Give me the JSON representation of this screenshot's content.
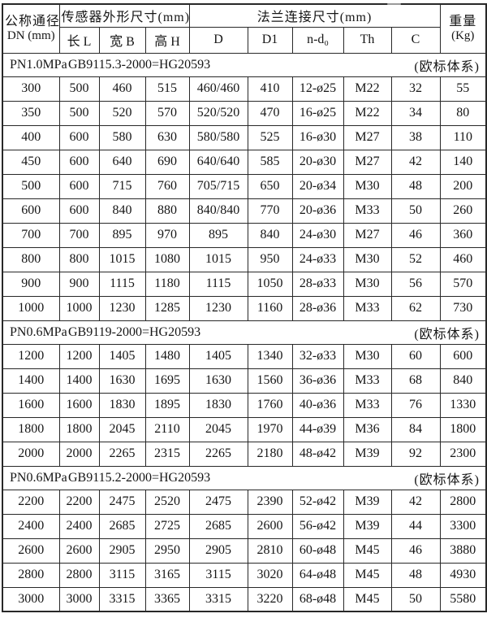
{
  "colors": {
    "ink": "#161616",
    "border": "#282828",
    "paper": "#ffffff"
  },
  "table": {
    "header": {
      "dn_title": "公称通径",
      "dn_unit": "DN (mm)",
      "sensor_group": "传感器外形尺寸(mm)",
      "flange_group": "法兰连接尺寸(mm)",
      "weight_title": "重量",
      "weight_unit": "(Kg)",
      "sub_headers": [
        "长 L",
        "宽 B",
        "高 H",
        "D",
        "D1",
        "n-d₀",
        "Th",
        "C"
      ]
    },
    "sections": [
      {
        "pressure": "PN1.0MPa",
        "standard": "GB9115.3-2000=HG20593",
        "system": "(欧标体系)",
        "rows": [
          [
            "300",
            "500",
            "460",
            "515",
            "460/460",
            "410",
            "12-ø25",
            "M22",
            "32",
            "55"
          ],
          [
            "350",
            "500",
            "520",
            "570",
            "520/520",
            "470",
            "16-ø25",
            "M22",
            "34",
            "80"
          ],
          [
            "400",
            "600",
            "580",
            "630",
            "580/580",
            "525",
            "16-ø30",
            "M27",
            "38",
            "110"
          ],
          [
            "450",
            "600",
            "640",
            "690",
            "640/640",
            "585",
            "20-ø30",
            "M27",
            "42",
            "140"
          ],
          [
            "500",
            "600",
            "715",
            "760",
            "705/715",
            "650",
            "20-ø34",
            "M30",
            "48",
            "200"
          ],
          [
            "600",
            "600",
            "840",
            "880",
            "840/840",
            "770",
            "20-ø36",
            "M33",
            "50",
            "260"
          ],
          [
            "700",
            "700",
            "895",
            "970",
            "895",
            "840",
            "24-ø30",
            "M27",
            "46",
            "360"
          ],
          [
            "800",
            "800",
            "1015",
            "1080",
            "1015",
            "950",
            "24-ø33",
            "M30",
            "52",
            "460"
          ],
          [
            "900",
            "900",
            "1115",
            "1180",
            "1115",
            "1050",
            "28-ø33",
            "M30",
            "56",
            "570"
          ],
          [
            "1000",
            "1000",
            "1230",
            "1285",
            "1230",
            "1160",
            "28-ø36",
            "M33",
            "62",
            "730"
          ]
        ]
      },
      {
        "pressure": "PN0.6MPa",
        "standard": "GB9119-2000=HG20593",
        "system": "(欧标体系)",
        "rows": [
          [
            "1200",
            "1200",
            "1405",
            "1480",
            "1405",
            "1340",
            "32-ø33",
            "M30",
            "60",
            "600"
          ],
          [
            "1400",
            "1400",
            "1630",
            "1695",
            "1630",
            "1560",
            "36-ø36",
            "M33",
            "68",
            "840"
          ],
          [
            "1600",
            "1600",
            "1830",
            "1895",
            "1830",
            "1760",
            "40-ø36",
            "M33",
            "76",
            "1330"
          ],
          [
            "1800",
            "1800",
            "2045",
            "2110",
            "2045",
            "1970",
            "44-ø39",
            "M36",
            "84",
            "1800"
          ],
          [
            "2000",
            "2000",
            "2265",
            "2315",
            "2265",
            "2180",
            "48-ø42",
            "M39",
            "92",
            "2300"
          ]
        ]
      },
      {
        "pressure": "PN0.6MPa",
        "standard": "GB9115.2-2000=HG20593",
        "system": "(欧标体系)",
        "rows": [
          [
            "2200",
            "2200",
            "2475",
            "2520",
            "2475",
            "2390",
            "52-ø42",
            "M39",
            "42",
            "2800"
          ],
          [
            "2400",
            "2400",
            "2685",
            "2725",
            "2685",
            "2600",
            "56-ø42",
            "M39",
            "44",
            "3300"
          ],
          [
            "2600",
            "2600",
            "2905",
            "2950",
            "2905",
            "2810",
            "60-ø48",
            "M45",
            "46",
            "3880"
          ],
          [
            "2800",
            "2800",
            "3115",
            "3165",
            "3115",
            "3020",
            "64-ø48",
            "M45",
            "48",
            "4930"
          ],
          [
            "3000",
            "3000",
            "3315",
            "3365",
            "3315",
            "3220",
            "68-ø48",
            "M45",
            "50",
            "5580"
          ]
        ]
      }
    ]
  }
}
